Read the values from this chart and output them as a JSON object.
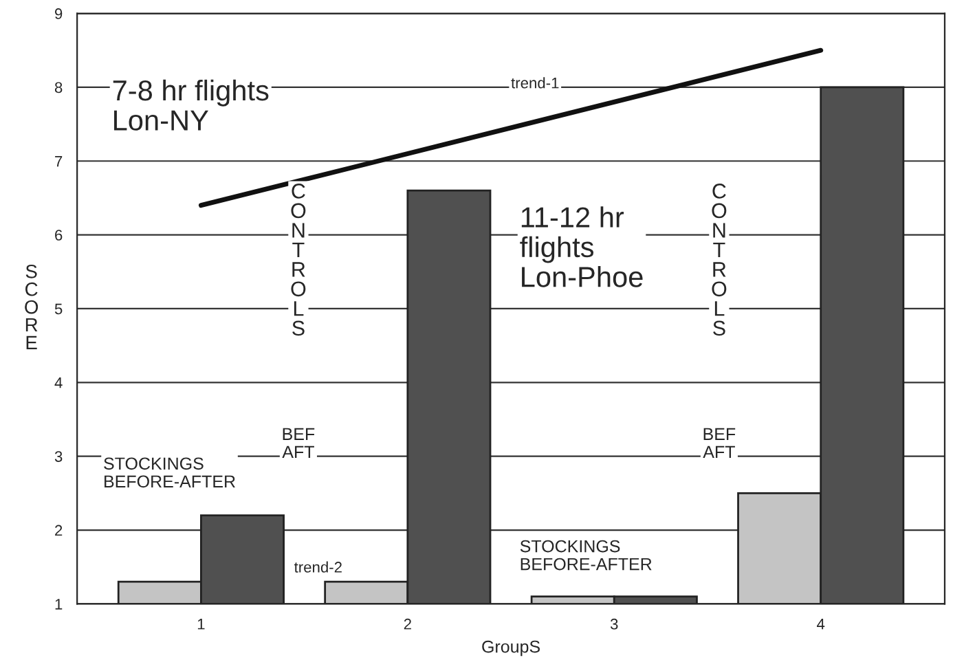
{
  "chart_data": {
    "type": "bar",
    "xlabel": "GroupS",
    "ylabel": "SCORE",
    "categories": [
      "1",
      "2",
      "3",
      "4"
    ],
    "series": [
      {
        "color": "#c4c4c4",
        "values": [
          1.3,
          1.3,
          1.1,
          2.5
        ]
      },
      {
        "color": "#505050",
        "values": [
          2.2,
          6.6,
          1.1,
          8.0
        ]
      },
      {
        "type": "line",
        "color": "#111111",
        "x": [
          "1",
          "4"
        ],
        "values": [
          6.4,
          8.5
        ]
      }
    ],
    "ylim": [
      1,
      9
    ],
    "yticks": [
      1,
      2,
      3,
      4,
      5,
      6,
      7,
      8,
      9
    ],
    "grid": "y",
    "legend": false,
    "annotations": [
      "7-8 hr flights\nLon-NY",
      "trend-1",
      "11-12 hr\nflights\nLon-Phoe",
      "CONTROLS",
      "BEF\nAFT",
      "STOCKINGS\nBEFORE-AFTER",
      "trend-2",
      "STOCKINGS\nBEFORE-AFTER",
      "CONTROLS",
      "BEF\nAFT"
    ]
  }
}
